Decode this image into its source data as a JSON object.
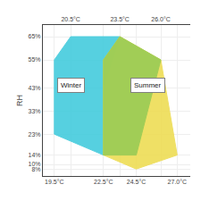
{
  "chart_data": {
    "type": "polygon",
    "y_label": "RH",
    "xlim": [
      18.8,
      27.8
    ],
    "xticks": [
      {
        "value": 19.5,
        "label": "19.5°C"
      },
      {
        "value": 22.5,
        "label": "22.5°C"
      },
      {
        "value": 24.5,
        "label": "24.5°C"
      },
      {
        "value": 27.0,
        "label": "27.0°C"
      }
    ],
    "x2lim": [
      18.8,
      27.8
    ],
    "x2ticks": [
      {
        "value": 20.5,
        "label": "20.5°C"
      },
      {
        "value": 23.5,
        "label": "23.5°C"
      },
      {
        "value": 23.5,
        "label": "23.5°C"
      },
      {
        "value": 26.0,
        "label": "26.0°C"
      }
    ],
    "ylim": [
      5,
      70
    ],
    "yticks": [
      {
        "value": 65,
        "label": "65%"
      },
      {
        "value": 55,
        "label": "55%"
      },
      {
        "value": 43,
        "label": "43%"
      },
      {
        "value": 33,
        "label": "33%"
      },
      {
        "value": 23,
        "label": "23%"
      },
      {
        "value": 14,
        "label": "14%"
      },
      {
        "value": 10,
        "label": "10%"
      },
      {
        "value": 8,
        "label": "8%"
      }
    ],
    "grid": true,
    "series": [
      {
        "color": "#44CCDD",
        "x": [
          19.5,
          20.5,
          23.5,
          22.5,
          22.5,
          19.5
        ],
        "values": [
          55,
          65,
          65,
          43,
          14,
          23
        ]
      },
      {
        "color": "#EEDD55",
        "x": [
          22.5,
          23.5,
          26.0,
          27.0,
          24.5,
          22.5
        ],
        "values": [
          55,
          65,
          55,
          14,
          8,
          14
        ]
      },
      {
        "color": "#99CC55",
        "x": [
          22.5,
          23.5,
          26.0,
          24.5,
          22.5
        ],
        "values": [
          55,
          65,
          55,
          14,
          14
        ]
      }
    ],
    "annotations": [
      {
        "text": "Winter",
        "x": 20.5,
        "y": 44
      },
      {
        "text": "Summer",
        "x": 25.2,
        "y": 44
      }
    ]
  }
}
